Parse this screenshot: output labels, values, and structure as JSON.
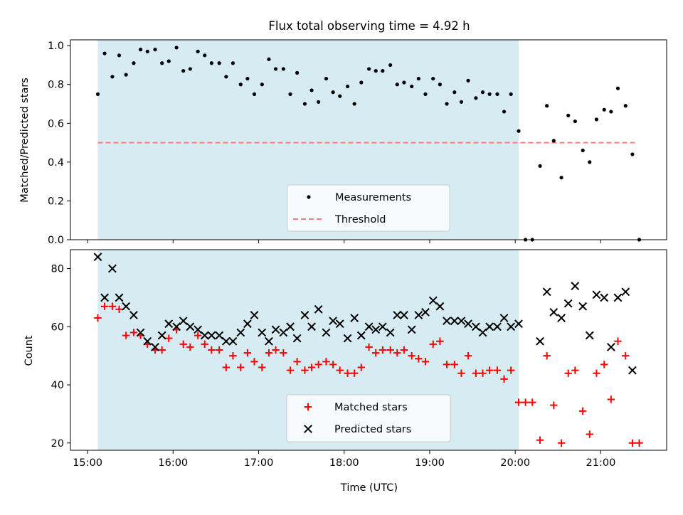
{
  "figure": {
    "title": "Flux total observing time = 4.92 h",
    "shade_color": "#add8e6",
    "x_ticks": [
      {
        "t": 15.0,
        "label": "15:00"
      },
      {
        "t": 16.0,
        "label": "16:00"
      },
      {
        "t": 17.0,
        "label": "17:00"
      },
      {
        "t": 18.0,
        "label": "18:00"
      },
      {
        "t": 19.0,
        "label": "19:00"
      },
      {
        "t": 20.0,
        "label": "20:00"
      },
      {
        "t": 21.0,
        "label": "21:00"
      }
    ]
  },
  "chart_data": [
    {
      "type": "scatter",
      "title": "Flux total observing time = 4.92 h",
      "ylabel": "Matched/Predicted stars",
      "xlim": [
        14.8,
        21.77
      ],
      "ylim": [
        0.0,
        1.03
      ],
      "y_ticks": [
        {
          "v": 0.0,
          "label": "0.0"
        },
        {
          "v": 0.2,
          "label": "0.2"
        },
        {
          "v": 0.4,
          "label": "0.4"
        },
        {
          "v": 0.6,
          "label": "0.6"
        },
        {
          "v": 0.8,
          "label": "0.8"
        },
        {
          "v": 1.0,
          "label": "1.0"
        }
      ],
      "shaded_x_range": [
        15.12,
        20.04
      ],
      "threshold": {
        "value": 0.5,
        "x_range": [
          15.12,
          21.42
        ],
        "color": "#f08080"
      },
      "legend": {
        "position": "lower-center",
        "entries": [
          "Measurements",
          "Threshold"
        ]
      },
      "x_units": "hours (UTC)",
      "series": [
        {
          "name": "Measurements",
          "color": "#000000",
          "marker": "dot",
          "x": [
            15.12,
            15.2,
            15.29,
            15.37,
            15.45,
            15.54,
            15.62,
            15.7,
            15.79,
            15.87,
            15.95,
            16.04,
            16.12,
            16.2,
            16.29,
            16.37,
            16.45,
            16.54,
            16.62,
            16.7,
            16.79,
            16.87,
            16.95,
            17.04,
            17.12,
            17.2,
            17.29,
            17.37,
            17.45,
            17.54,
            17.62,
            17.7,
            17.79,
            17.87,
            17.95,
            18.04,
            18.12,
            18.2,
            18.29,
            18.37,
            18.45,
            18.54,
            18.62,
            18.7,
            18.79,
            18.87,
            18.95,
            19.04,
            19.12,
            19.2,
            19.29,
            19.37,
            19.45,
            19.54,
            19.62,
            19.7,
            19.79,
            19.87,
            19.95,
            20.04,
            20.12,
            20.2,
            20.29,
            20.37,
            20.45,
            20.54,
            20.62,
            20.7,
            20.79,
            20.87,
            20.95,
            21.04,
            21.12,
            21.2,
            21.29,
            21.37,
            21.45
          ],
          "y": [
            0.75,
            0.96,
            0.84,
            0.95,
            0.85,
            0.91,
            0.98,
            0.97,
            0.98,
            0.91,
            0.92,
            0.99,
            0.87,
            0.88,
            0.97,
            0.95,
            0.91,
            0.91,
            0.84,
            0.91,
            0.8,
            0.83,
            0.75,
            0.8,
            0.93,
            0.88,
            0.88,
            0.75,
            0.86,
            0.7,
            0.77,
            0.71,
            0.83,
            0.76,
            0.74,
            0.79,
            0.7,
            0.81,
            0.88,
            0.87,
            0.87,
            0.9,
            0.8,
            0.81,
            0.79,
            0.83,
            0.75,
            0.83,
            0.8,
            0.7,
            0.76,
            0.71,
            0.82,
            0.73,
            0.76,
            0.75,
            0.75,
            0.66,
            0.75,
            0.56,
            0.0,
            0.0,
            0.38,
            0.69,
            0.51,
            0.32,
            0.64,
            0.61,
            0.46,
            0.4,
            0.62,
            0.67,
            0.66,
            0.78,
            0.69,
            0.44,
            0.0
          ]
        }
      ]
    },
    {
      "type": "scatter",
      "xlabel": "Time (UTC)",
      "ylabel": "Count",
      "xlim": [
        14.8,
        21.77
      ],
      "ylim": [
        17.5,
        86.5
      ],
      "y_ticks": [
        {
          "v": 20,
          "label": "20"
        },
        {
          "v": 40,
          "label": "40"
        },
        {
          "v": 60,
          "label": "60"
        },
        {
          "v": 80,
          "label": "80"
        }
      ],
      "shaded_x_range": [
        15.12,
        20.04
      ],
      "legend": {
        "position": "lower-center",
        "entries": [
          "Matched stars",
          "Predicted stars"
        ]
      },
      "x_units": "hours (UTC)",
      "series": [
        {
          "name": "Matched stars",
          "color": "#ff0000",
          "marker": "plus",
          "x": [
            15.12,
            15.2,
            15.29,
            15.37,
            15.45,
            15.54,
            15.62,
            15.7,
            15.79,
            15.87,
            15.95,
            16.04,
            16.12,
            16.2,
            16.29,
            16.37,
            16.45,
            16.54,
            16.62,
            16.7,
            16.79,
            16.87,
            16.95,
            17.04,
            17.12,
            17.2,
            17.29,
            17.37,
            17.45,
            17.54,
            17.62,
            17.7,
            17.79,
            17.87,
            17.95,
            18.04,
            18.12,
            18.2,
            18.29,
            18.37,
            18.45,
            18.54,
            18.62,
            18.7,
            18.79,
            18.87,
            18.95,
            19.04,
            19.12,
            19.2,
            19.29,
            19.37,
            19.45,
            19.54,
            19.62,
            19.7,
            19.79,
            19.87,
            19.95,
            20.04,
            20.12,
            20.2,
            20.29,
            20.37,
            20.45,
            20.54,
            20.62,
            20.7,
            20.79,
            20.87,
            20.95,
            21.04,
            21.12,
            21.2,
            21.29,
            21.37,
            21.45
          ],
          "y": [
            63,
            67,
            67,
            66,
            57,
            58,
            57,
            54,
            52,
            52,
            56,
            59,
            54,
            53,
            57,
            54,
            52,
            52,
            46,
            50,
            46,
            51,
            48,
            46,
            51,
            52,
            51,
            45,
            48,
            45,
            46,
            47,
            48,
            47,
            45,
            44,
            44,
            46,
            53,
            51,
            52,
            52,
            51,
            52,
            50,
            49,
            48,
            54,
            55,
            47,
            47,
            44,
            50,
            44,
            44,
            45,
            45,
            42,
            45,
            34,
            34,
            34,
            21,
            50,
            33,
            20,
            44,
            45,
            31,
            23,
            44,
            47,
            35,
            55,
            50,
            20,
            20
          ]
        },
        {
          "name": "Predicted stars",
          "color": "#000000",
          "marker": "x",
          "x": [
            15.12,
            15.2,
            15.29,
            15.37,
            15.45,
            15.54,
            15.62,
            15.7,
            15.79,
            15.87,
            15.95,
            16.04,
            16.12,
            16.2,
            16.29,
            16.37,
            16.45,
            16.54,
            16.62,
            16.7,
            16.79,
            16.87,
            16.95,
            17.04,
            17.12,
            17.2,
            17.29,
            17.37,
            17.45,
            17.54,
            17.62,
            17.7,
            17.79,
            17.87,
            17.95,
            18.04,
            18.12,
            18.2,
            18.29,
            18.37,
            18.45,
            18.54,
            18.62,
            18.7,
            18.79,
            18.87,
            18.95,
            19.04,
            19.12,
            19.2,
            19.29,
            19.37,
            19.45,
            19.54,
            19.62,
            19.7,
            19.79,
            19.87,
            19.95,
            20.04,
            20.29,
            20.37,
            20.45,
            20.54,
            20.62,
            20.7,
            20.79,
            20.87,
            20.95,
            21.04,
            21.12,
            21.2,
            21.29,
            21.37
          ],
          "y": [
            84,
            70,
            80,
            70,
            67,
            64,
            58,
            55,
            53,
            57,
            61,
            60,
            62,
            60,
            59,
            57,
            57,
            57,
            55,
            55,
            58,
            61,
            64,
            58,
            55,
            59,
            58,
            60,
            56,
            64,
            60,
            66,
            58,
            62,
            61,
            56,
            63,
            57,
            60,
            59,
            60,
            58,
            64,
            64,
            59,
            64,
            65,
            69,
            67,
            62,
            62,
            62,
            61,
            60,
            58,
            60,
            60,
            63,
            60,
            61,
            55,
            72,
            65,
            63,
            68,
            74,
            67,
            57,
            71,
            70,
            53,
            70,
            72,
            45
          ]
        }
      ]
    }
  ]
}
